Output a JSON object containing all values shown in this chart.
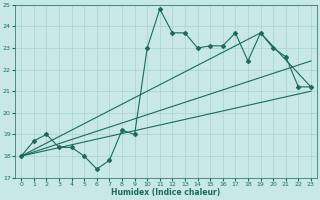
{
  "bg_color": "#c8e8e8",
  "grid_color": "#a8d0d0",
  "line_color": "#1a6b5a",
  "xlabel": "Humidex (Indice chaleur)",
  "xlim": [
    -0.5,
    23.5
  ],
  "ylim": [
    17,
    25
  ],
  "xticks": [
    0,
    1,
    2,
    3,
    4,
    5,
    6,
    7,
    8,
    9,
    10,
    11,
    12,
    13,
    14,
    15,
    16,
    17,
    18,
    19,
    20,
    21,
    22,
    23
  ],
  "yticks": [
    17,
    18,
    19,
    20,
    21,
    22,
    23,
    24,
    25
  ],
  "zigzag_x": [
    0,
    1,
    2,
    3,
    4,
    5,
    6,
    7,
    8,
    9,
    10,
    11,
    12,
    13,
    14,
    15,
    16,
    17,
    18,
    19,
    20,
    21,
    22,
    23
  ],
  "zigzag_y": [
    18.0,
    18.7,
    19.0,
    18.4,
    18.4,
    18.0,
    17.4,
    17.8,
    19.2,
    19.0,
    23.0,
    24.8,
    23.7,
    23.7,
    23.0,
    23.1,
    23.1,
    23.7,
    22.4,
    23.7,
    23.0,
    22.6,
    21.2,
    21.2
  ],
  "line1_x": [
    0,
    19,
    23
  ],
  "line1_y": [
    18.0,
    23.7,
    21.2
  ],
  "line2_x": [
    0,
    23
  ],
  "line2_y": [
    18.0,
    22.4
  ],
  "line3_x": [
    0,
    23
  ],
  "line3_y": [
    18.0,
    21.0
  ]
}
